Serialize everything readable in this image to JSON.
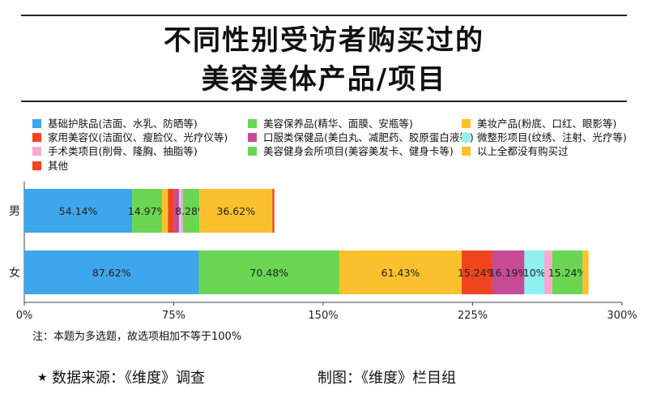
{
  "title": {
    "line1": "不同性别受访者购买过的",
    "line2": "美容美体产品/项目"
  },
  "note": "注：本题为多选题，故选项相加不等于100%",
  "source": "数据来源：《维度》调查",
  "credit": "制图：《维度》栏目组",
  "chart_data": {
    "type": "bar",
    "orientation": "horizontal",
    "stacked": true,
    "categories": [
      "男",
      "女"
    ],
    "xlim": [
      0,
      300
    ],
    "xticks": [
      0,
      75,
      150,
      225,
      300
    ],
    "xtick_labels": [
      "0%",
      "75%",
      "150%",
      "225%",
      "300%"
    ],
    "legend_position": "top",
    "series": [
      {
        "name": "基础护肤品(洁面、水乳、防晒等)",
        "color": "#3ea6ea",
        "values": [
          54.14,
          87.62
        ],
        "labels": [
          "54.14%",
          "87.62%"
        ]
      },
      {
        "name": "美容保养品(精华、面膜、安瓶等)",
        "color": "#6ad653",
        "values": [
          14.97,
          70.48
        ],
        "labels": [
          "14.97%",
          "70.48%"
        ]
      },
      {
        "name": "美妆产品(粉底、口红、眼影等)",
        "color": "#fbc02d",
        "values": [
          3.0,
          61.43
        ],
        "labels": [
          "",
          "61.43%"
        ]
      },
      {
        "name": "家用美容仪(洁面仪、瘦脸仪、光疗仪等)",
        "color": "#f0441e",
        "values": [
          3.0,
          15.24
        ],
        "labels": [
          "",
          "15.24%"
        ]
      },
      {
        "name": "口服类保健品(美白丸、减肥药、胶原蛋白液等)",
        "color": "#c64a96",
        "values": [
          2.5,
          16.19
        ],
        "labels": [
          "",
          "16.19%"
        ]
      },
      {
        "name": "微整形项目(纹绣、注射、光疗等)",
        "color": "#8ff0f0",
        "values": [
          0.8,
          10.0
        ],
        "labels": [
          "",
          "10%"
        ]
      },
      {
        "name": "手术类项目(削骨、隆胸、抽脂等)",
        "color": "#f7a9cf",
        "values": [
          1.2,
          4.0
        ],
        "labels": [
          "",
          ""
        ]
      },
      {
        "name": "美容健身会所项目(美容美发卡、健身卡等)",
        "color": "#6ad653",
        "values": [
          8.28,
          15.24
        ],
        "labels": [
          "8.28%",
          "15.24%"
        ]
      },
      {
        "name": "以上全都没有购买过",
        "color": "#fbc02d",
        "values": [
          36.62,
          3.0
        ],
        "labels": [
          "36.62%",
          ""
        ]
      },
      {
        "name": "其他",
        "color": "#f0441e",
        "values": [
          1.0,
          0.0
        ],
        "labels": [
          "",
          ""
        ]
      }
    ]
  }
}
